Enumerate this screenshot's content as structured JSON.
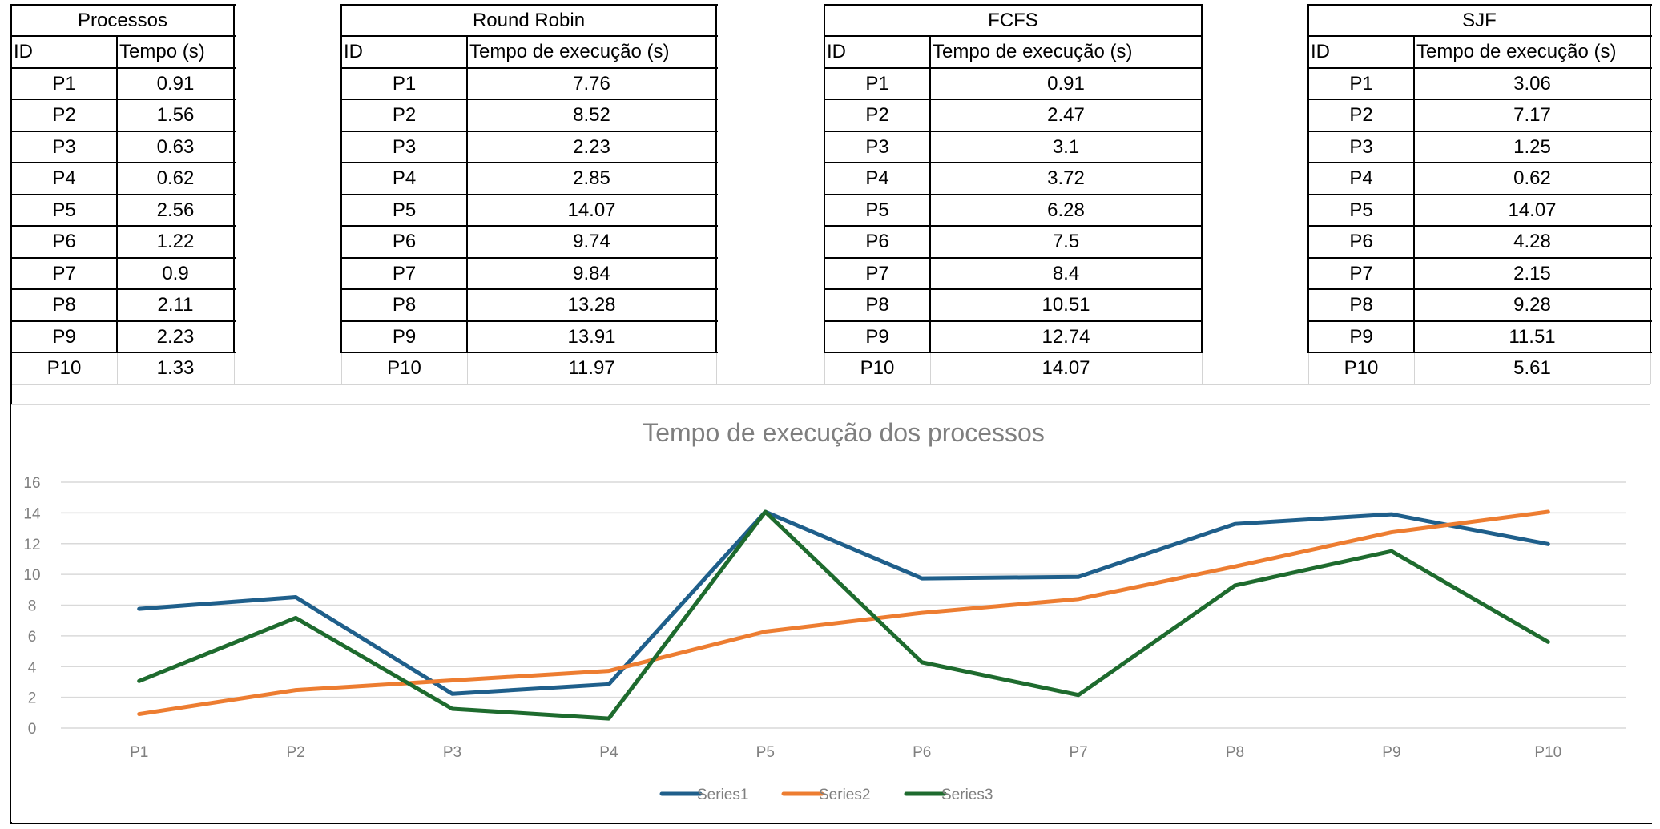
{
  "tables": [
    {
      "title": "Processos",
      "col_id": "ID",
      "col_value": "Tempo (s)",
      "rows": [
        {
          "id": "P1",
          "value": "0.91"
        },
        {
          "id": "P2",
          "value": "1.56"
        },
        {
          "id": "P3",
          "value": "0.63"
        },
        {
          "id": "P4",
          "value": "0.62"
        },
        {
          "id": "P5",
          "value": "2.56"
        },
        {
          "id": "P6",
          "value": "1.22"
        },
        {
          "id": "P7",
          "value": "0.9"
        },
        {
          "id": "P8",
          "value": "2.11"
        },
        {
          "id": "P9",
          "value": "2.23"
        },
        {
          "id": "P10",
          "value": "1.33"
        }
      ]
    },
    {
      "title": "Round Robin",
      "col_id": "ID",
      "col_value": "Tempo de execução (s)",
      "rows": [
        {
          "id": "P1",
          "value": "7.76"
        },
        {
          "id": "P2",
          "value": "8.52"
        },
        {
          "id": "P3",
          "value": "2.23"
        },
        {
          "id": "P4",
          "value": "2.85"
        },
        {
          "id": "P5",
          "value": "14.07"
        },
        {
          "id": "P6",
          "value": "9.74"
        },
        {
          "id": "P7",
          "value": "9.84"
        },
        {
          "id": "P8",
          "value": "13.28"
        },
        {
          "id": "P9",
          "value": "13.91"
        },
        {
          "id": "P10",
          "value": "11.97"
        }
      ]
    },
    {
      "title": "FCFS",
      "col_id": "ID",
      "col_value": "Tempo de execução (s)",
      "rows": [
        {
          "id": "P1",
          "value": "0.91"
        },
        {
          "id": "P2",
          "value": "2.47"
        },
        {
          "id": "P3",
          "value": "3.1"
        },
        {
          "id": "P4",
          "value": "3.72"
        },
        {
          "id": "P5",
          "value": "6.28"
        },
        {
          "id": "P6",
          "value": "7.5"
        },
        {
          "id": "P7",
          "value": "8.4"
        },
        {
          "id": "P8",
          "value": "10.51"
        },
        {
          "id": "P9",
          "value": "12.74"
        },
        {
          "id": "P10",
          "value": "14.07"
        }
      ]
    },
    {
      "title": "SJF",
      "col_id": "ID",
      "col_value": "Tempo de execução (s)",
      "rows": [
        {
          "id": "P1",
          "value": "3.06"
        },
        {
          "id": "P2",
          "value": "7.17"
        },
        {
          "id": "P3",
          "value": "1.25"
        },
        {
          "id": "P4",
          "value": "0.62"
        },
        {
          "id": "P5",
          "value": "14.07"
        },
        {
          "id": "P6",
          "value": "4.28"
        },
        {
          "id": "P7",
          "value": "2.15"
        },
        {
          "id": "P8",
          "value": "9.28"
        },
        {
          "id": "P9",
          "value": "11.51"
        },
        {
          "id": "P10",
          "value": "5.61"
        }
      ]
    }
  ],
  "chart_data": {
    "type": "line",
    "title": "Tempo de execução dos processos",
    "xlabel": "",
    "ylabel": "",
    "categories": [
      "P1",
      "P2",
      "P3",
      "P4",
      "P5",
      "P6",
      "P7",
      "P8",
      "P9",
      "P10"
    ],
    "ylim": [
      0,
      16
    ],
    "yticks": [
      0,
      2,
      4,
      6,
      8,
      10,
      12,
      14,
      16
    ],
    "grid": true,
    "legend": "bottom",
    "series": [
      {
        "name": "Series1",
        "color": "#1f5f8b",
        "values": [
          7.76,
          8.52,
          2.23,
          2.85,
          14.07,
          9.74,
          9.84,
          13.28,
          13.91,
          11.97
        ]
      },
      {
        "name": "Series2",
        "color": "#ed7d31",
        "values": [
          0.91,
          2.47,
          3.1,
          3.72,
          6.28,
          7.5,
          8.4,
          10.51,
          12.74,
          14.07
        ]
      },
      {
        "name": "Series3",
        "color": "#1e6b2e",
        "values": [
          3.06,
          7.17,
          1.25,
          0.62,
          14.07,
          4.28,
          2.15,
          9.28,
          11.51,
          5.61
        ]
      }
    ]
  }
}
